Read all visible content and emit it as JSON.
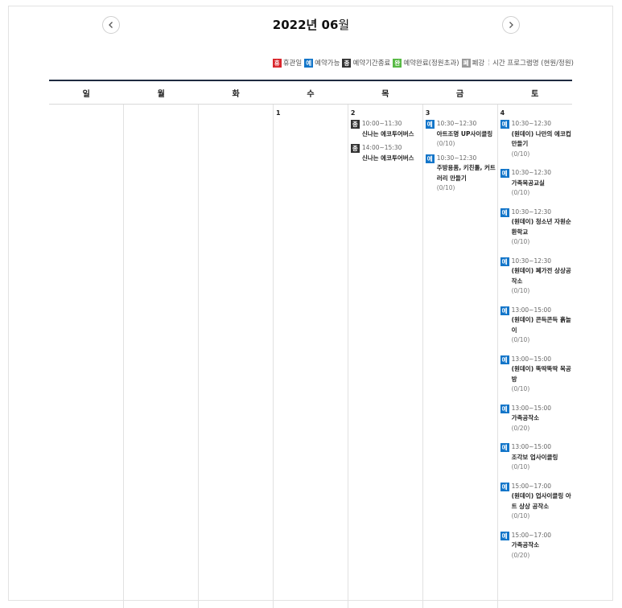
{
  "header": {
    "year_month": "2022년 06",
    "month_unit": "월"
  },
  "legend": {
    "items": [
      {
        "badge": "휴",
        "label": "휴관일",
        "color": "#d9262c"
      },
      {
        "badge": "예",
        "label": "예약가능",
        "color": "#1275c9"
      },
      {
        "badge": "종",
        "label": "예약기간종료",
        "color": "#333333"
      },
      {
        "badge": "완",
        "label": "예약완료(정원초과)",
        "color": "#57b944"
      },
      {
        "badge": "폐",
        "label": "폐강",
        "color": "#9a9a9a"
      }
    ],
    "note": "시간 프로그램명 (현원/정원)"
  },
  "weekdays": [
    "일",
    "월",
    "화",
    "수",
    "목",
    "금",
    "토"
  ],
  "days": {
    "wed": {
      "num": "1",
      "events": []
    },
    "thu": {
      "num": "2",
      "events": [
        {
          "badge": "종",
          "time": "10:00~11:30",
          "name": "신나는 에코투어버스",
          "count": ""
        },
        {
          "badge": "종",
          "time": "14:00~15:30",
          "name": "신나는 에코투어버스",
          "count": ""
        }
      ]
    },
    "fri": {
      "num": "3",
      "events": [
        {
          "badge": "예",
          "time": "10:30~12:30",
          "name": "아트조명 UP사이클링",
          "count": "(0/10)"
        },
        {
          "badge": "예",
          "time": "10:30~12:30",
          "name": "주방용품, 키친툴, 커트러리 만들기",
          "count": "(0/10)"
        }
      ]
    },
    "sat": {
      "num": "4",
      "events": [
        {
          "badge": "예",
          "time": "10:30~12:30",
          "name": "(원데이) 나만의 에코컵 만들기",
          "count": "(0/10)"
        },
        {
          "badge": "예",
          "time": "10:30~12:30",
          "name": "가족목공교실",
          "count": "(0/10)"
        },
        {
          "badge": "예",
          "time": "10:30~12:30",
          "name": "(원데이) 청소년 자원순환학교",
          "count": "(0/10)"
        },
        {
          "badge": "예",
          "time": "10:30~12:30",
          "name": "(원데이) 폐가전 상상공작소",
          "count": "(0/10)"
        },
        {
          "badge": "예",
          "time": "13:00~15:00",
          "name": "(원데이) 콘득콘득 흙놀이",
          "count": "(0/10)"
        },
        {
          "badge": "예",
          "time": "13:00~15:00",
          "name": "(원데이) 뚝딱뚝딱 목공방",
          "count": "(0/10)"
        },
        {
          "badge": "예",
          "time": "13:00~15:00",
          "name": "가족공작소",
          "count": "(0/20)"
        },
        {
          "badge": "예",
          "time": "13:00~15:00",
          "name": "조각보 업사이클링",
          "count": "(0/10)"
        },
        {
          "badge": "예",
          "time": "15:00~17:00",
          "name": "(원데이) 업사이클링 아트 상상 공작소",
          "count": "(0/10)"
        },
        {
          "badge": "예",
          "time": "15:00~17:00",
          "name": "가족공작소",
          "count": "(0/20)"
        }
      ]
    }
  }
}
